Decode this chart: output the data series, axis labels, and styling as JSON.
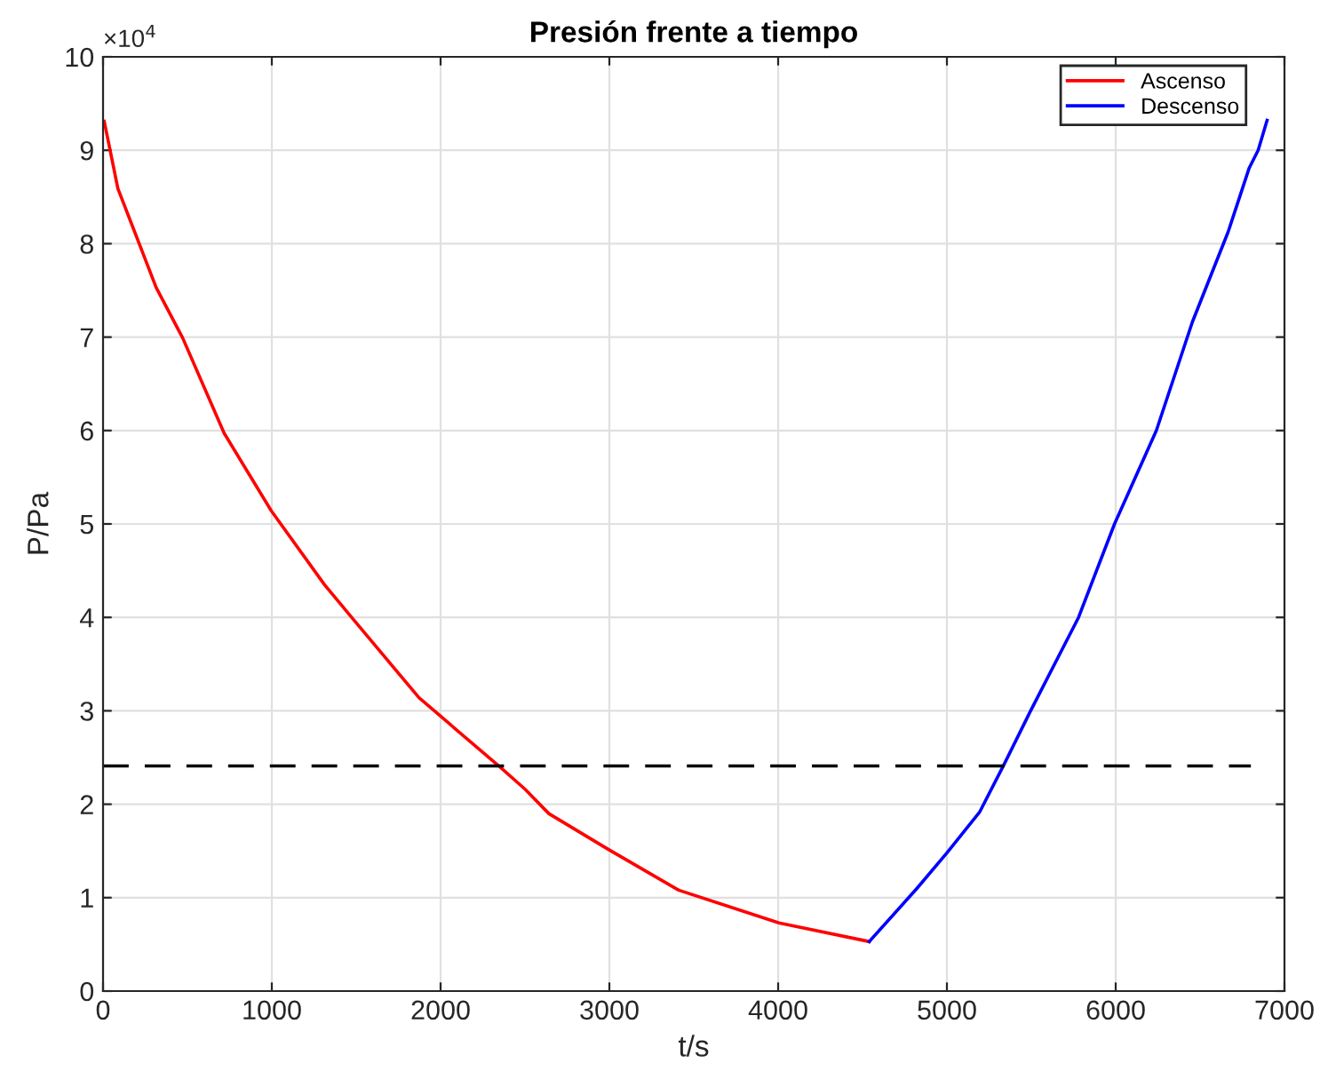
{
  "chart_data": {
    "type": "line",
    "title": "Presión frente a tiempo",
    "xlabel": "t/s",
    "ylabel": "P/Pa",
    "annotations": [
      "×10$^{4}$"
    ],
    "xlim": [
      0,
      7000
    ],
    "xticks": [
      0,
      1000,
      2000,
      3000,
      4000,
      5000,
      6000,
      7000
    ],
    "ylim": [
      0,
      10
    ],
    "yticks": [
      0,
      1,
      2,
      3,
      4,
      5,
      6,
      7,
      8,
      9,
      10
    ],
    "grid": true,
    "legend": "top right",
    "line_style": "solid",
    "marker": "none",
    "series": [
      {
        "name": "Ascenso",
        "color": "#ff0000",
        "x": [
          7,
          88,
          315,
          472,
          718,
          997,
          1312,
          1487,
          1872,
          2344,
          2501,
          2641,
          2991,
          3411,
          4005,
          4540
        ],
        "values": [
          9.31,
          8.59,
          7.53,
          6.99,
          5.97,
          5.14,
          4.35,
          3.97,
          3.14,
          2.41,
          2.16,
          1.9,
          1.52,
          1.08,
          0.73,
          0.53
        ]
      },
      {
        "name": "Descenso",
        "color": "#0000ff",
        "x": [
          4540,
          4823,
          5000,
          5195,
          5337,
          5496,
          5780,
          5993,
          6241,
          6454,
          6667,
          6791,
          6844,
          6897
        ],
        "values": [
          0.53,
          1.1,
          1.48,
          1.92,
          2.42,
          3.0,
          4.0,
          5.0,
          6.0,
          7.16,
          8.13,
          8.81,
          9.0,
          9.32
        ]
      },
      {
        "color": "#000000",
        "line_style": "dashed",
        "x": [
          0,
          6801
        ],
        "values": [
          2.41,
          2.41
        ]
      }
    ]
  }
}
